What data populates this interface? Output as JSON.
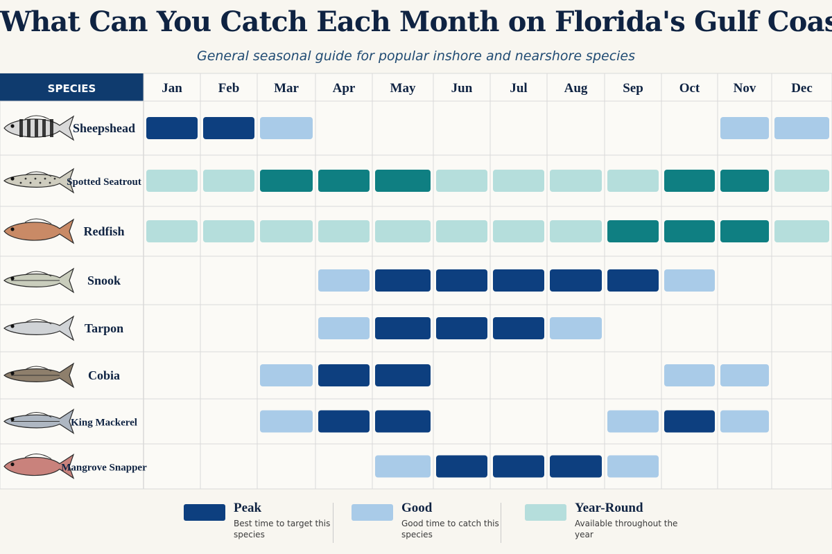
{
  "title": "What Can You Catch Each Month on Florida's Gulf Coast?",
  "subtitle": "General seasonal guide for popular inshore and nearshore species",
  "colors": {
    "header": "#0f3b6e",
    "peak": "#0d3f7f",
    "good": "#a9cbe8",
    "peak_teal": "#0f7f82",
    "year_round": "#b5dedc",
    "grid": "#d9d9d9"
  },
  "legend": [
    {
      "key": "peak",
      "label": "Peak",
      "desc": "Best time to target this species",
      "color": "#0d3f7f"
    },
    {
      "key": "good",
      "label": "Good",
      "desc": "Good time to catch this species",
      "color": "#a9cbe8"
    },
    {
      "key": "year_round",
      "label": "Year-Round",
      "desc": "Available throughout the year",
      "color": "#b5dedc"
    }
  ],
  "chart_data": {
    "type": "table",
    "row_header": "SPECIES",
    "categories": [
      "Jan",
      "Feb",
      "Mar",
      "Apr",
      "May",
      "Jun",
      "Jul",
      "Aug",
      "Sep",
      "Oct",
      "Nov",
      "Dec"
    ],
    "series": [
      {
        "name": "Sheepshead",
        "icon": "sheepshead-icon",
        "values": [
          "peak",
          "peak",
          "good",
          "",
          "",
          "",
          "",
          "",
          "",
          "",
          "good",
          "good"
        ]
      },
      {
        "name": "Spotted Seatrout",
        "icon": "seatrout-icon",
        "values": [
          "year_round",
          "year_round",
          "peak_teal",
          "peak_teal",
          "peak_teal",
          "year_round",
          "year_round",
          "year_round",
          "year_round",
          "peak_teal",
          "peak_teal",
          "year_round"
        ]
      },
      {
        "name": "Redfish",
        "icon": "redfish-icon",
        "values": [
          "year_round",
          "year_round",
          "year_round",
          "year_round",
          "year_round",
          "year_round",
          "year_round",
          "year_round",
          "peak_teal",
          "peak_teal",
          "peak_teal",
          "year_round"
        ]
      },
      {
        "name": "Snook",
        "icon": "snook-icon",
        "values": [
          "",
          "",
          "",
          "good",
          "peak",
          "peak",
          "peak",
          "peak",
          "peak",
          "good",
          "",
          ""
        ]
      },
      {
        "name": "Tarpon",
        "icon": "tarpon-icon",
        "values": [
          "",
          "",
          "",
          "good",
          "peak",
          "peak",
          "peak",
          "good",
          "",
          "",
          "",
          ""
        ]
      },
      {
        "name": "Cobia",
        "icon": "cobia-icon",
        "values": [
          "",
          "",
          "good",
          "peak",
          "peak",
          "",
          "",
          "",
          "",
          "good",
          "good",
          ""
        ]
      },
      {
        "name": "King Mackerel",
        "icon": "king-mackerel-icon",
        "values": [
          "",
          "",
          "good",
          "peak",
          "peak",
          "",
          "",
          "",
          "good",
          "peak",
          "good",
          ""
        ]
      },
      {
        "name": "Mangrove Snapper",
        "icon": "mangrove-snapper-icon",
        "values": [
          "",
          "",
          "",
          "",
          "good",
          "peak",
          "peak",
          "peak",
          "good",
          "",
          "",
          ""
        ]
      }
    ]
  }
}
